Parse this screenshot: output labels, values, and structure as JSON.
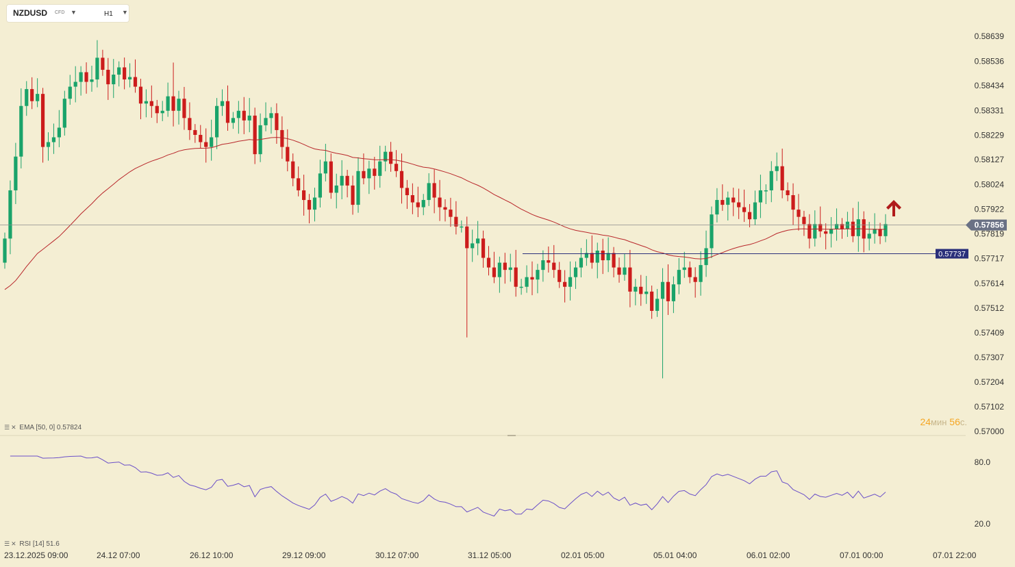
{
  "toolbar": {
    "symbol": "NZDUSD",
    "symbol_tag": "CFD",
    "timeframe": "H1"
  },
  "indicators": {
    "ema_label": "EMA",
    "ema_params": "[50, 0]",
    "ema_value": "0.57824",
    "rsi_label": "RSI",
    "rsi_params": "[14]",
    "rsi_value": "51.6"
  },
  "countdown": {
    "minutes": "24",
    "minutes_unit": "мин",
    "seconds": "56",
    "seconds_unit": "с."
  },
  "colors": {
    "background": "#f4eed3",
    "bull": "#1aa36a",
    "bear": "#cc1c1c",
    "ema": "#b8262a",
    "rsi": "#6a4fc8",
    "support": "#2a2f7a",
    "price_tag": "#6a7185",
    "arrow": "#b01b1b"
  },
  "chart_data": {
    "type": "candlestick",
    "instrument": "NZDUSD",
    "timeframe": "H1",
    "ylim": [
      0.57,
      0.587
    ],
    "y_ticks": [
      "0.58639",
      "0.58536",
      "0.58434",
      "0.58331",
      "0.58229",
      "0.58127",
      "0.58024",
      "0.57922",
      "0.57819",
      "0.57717",
      "0.57614",
      "0.57512",
      "0.57409",
      "0.57307",
      "0.57204",
      "0.57102",
      "0.57000"
    ],
    "x_ticks": [
      "23.12.2025  09:00",
      "24.12  07:00",
      "26.12  10:00",
      "29.12  09:00",
      "30.12  07:00",
      "31.12  05:00",
      "02.01  05:00",
      "05.01  04:00",
      "06.01  02:00",
      "07.01  00:00",
      "07.01  22:00"
    ],
    "current_price": "0.57856",
    "support_level": "0.57737",
    "support_level_value": 0.57737,
    "annotation": "up-arrow",
    "ohlc_close": [
      0.578,
      0.58,
      0.5814,
      0.5835,
      0.5842,
      0.5837,
      0.584,
      0.5818,
      0.582,
      0.5822,
      0.5826,
      0.5838,
      0.5843,
      0.5845,
      0.5849,
      0.5845,
      0.5846,
      0.5855,
      0.585,
      0.5844,
      0.5848,
      0.5851,
      0.5846,
      0.5847,
      0.5843,
      0.5836,
      0.5837,
      0.5835,
      0.5832,
      0.5833,
      0.5839,
      0.5833,
      0.5838,
      0.583,
      0.5825,
      0.5823,
      0.582,
      0.5818,
      0.5822,
      0.5835,
      0.5837,
      0.5828,
      0.583,
      0.5833,
      0.5829,
      0.5831,
      0.5815,
      0.5827,
      0.583,
      0.5832,
      0.5825,
      0.5818,
      0.5812,
      0.5805,
      0.58,
      0.5796,
      0.5792,
      0.5797,
      0.5807,
      0.5812,
      0.5799,
      0.5802,
      0.5806,
      0.5802,
      0.5794,
      0.5808,
      0.5805,
      0.5809,
      0.5806,
      0.5812,
      0.5816,
      0.5811,
      0.5808,
      0.5801,
      0.5798,
      0.5795,
      0.5793,
      0.5796,
      0.5803,
      0.5797,
      0.5793,
      0.5792,
      0.5789,
      0.5785,
      0.5785,
      0.5776,
      0.5778,
      0.578,
      0.5772,
      0.5768,
      0.5764,
      0.577,
      0.5767,
      0.5768,
      0.576,
      0.576,
      0.5764,
      0.5763,
      0.5767,
      0.5771,
      0.577,
      0.5767,
      0.5762,
      0.576,
      0.5764,
      0.5768,
      0.5772,
      0.5774,
      0.577,
      0.5775,
      0.5771,
      0.5774,
      0.5768,
      0.5765,
      0.5768,
      0.5758,
      0.576,
      0.5757,
      0.5758,
      0.575,
      0.5755,
      0.5762,
      0.5754,
      0.5761,
      0.5767,
      0.5768,
      0.5764,
      0.5762,
      0.5769,
      0.5776,
      0.579,
      0.5796,
      0.5794,
      0.5797,
      0.5795,
      0.5793,
      0.5791,
      0.5788,
      0.5795,
      0.58,
      0.58,
      0.5808,
      0.581,
      0.58,
      0.5798,
      0.5792,
      0.5789,
      0.5786,
      0.578,
      0.5786,
      0.5783,
      0.5782,
      0.5784,
      0.5786,
      0.5784,
      0.5787,
      0.5781,
      0.5788,
      0.578,
      0.5782,
      0.5784,
      0.5781,
      0.5786
    ]
  }
}
